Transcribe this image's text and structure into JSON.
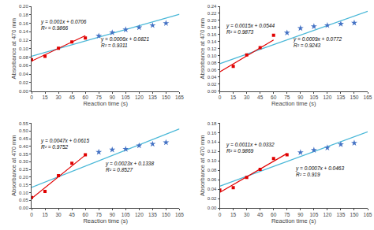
{
  "chart_data": [
    {
      "type": "scatter",
      "xlabel": "Reaction time (s)",
      "ylabel": "Absorbance at 470 mm",
      "grid": false,
      "xlim": [
        0,
        165
      ],
      "xticks": [
        0,
        15,
        30,
        45,
        60,
        75,
        90,
        105,
        120,
        135,
        150,
        165
      ],
      "ylim": [
        0,
        0.2
      ],
      "yticks": [
        {
          "value": 0,
          "label": "0.00"
        },
        {
          "value": 0.02,
          "label": "0.02"
        },
        {
          "value": 0.04,
          "label": "0.04"
        },
        {
          "value": 0.06,
          "label": "0.06"
        },
        {
          "value": 0.08,
          "label": "0.08"
        },
        {
          "value": 0.1,
          "label": "0.10"
        },
        {
          "value": 0.12,
          "label": "0.12"
        },
        {
          "value": 0.14,
          "label": "0.14"
        },
        {
          "value": 0.16,
          "label": "0.16"
        },
        {
          "value": 0.18,
          "label": "0.18"
        },
        {
          "value": 0.2,
          "label": "0.20"
        }
      ],
      "series": [
        {
          "type": "line",
          "color": "#4ab8d8",
          "x": [
            0,
            165
          ],
          "values": [
            0.0821,
            0.1811
          ]
        },
        {
          "type": "line",
          "color": "#e00000",
          "x": [
            0,
            60
          ],
          "values": [
            0.0706,
            0.1306
          ]
        },
        {
          "type": "scatter",
          "color": "#e00000",
          "marker": "square",
          "x": [
            0,
            15,
            30,
            45,
            60
          ],
          "values": [
            0.074,
            0.082,
            0.101,
            0.116,
            0.125
          ]
        },
        {
          "type": "scatter",
          "color": "#4472c4",
          "marker": "star",
          "x": [
            75,
            90,
            105,
            120,
            135,
            150
          ],
          "values": [
            0.13,
            0.138,
            0.145,
            0.15,
            0.155,
            0.16
          ]
        }
      ],
      "annotations": [
        {
          "text": "y = 0.001x + 0.0706\nR² = 0.9866",
          "x": 8,
          "y": 0.138
        },
        {
          "text": "y = 0.0006x + 0.0821\nR² = 0.9311",
          "x": 75,
          "y": 0.098
        }
      ]
    },
    {
      "type": "scatter",
      "xlabel": "Reaction time (s)",
      "ylabel": "Absorbance at 470 mm",
      "grid": false,
      "xlim": [
        0,
        165
      ],
      "xticks": [
        0,
        15,
        30,
        45,
        60,
        75,
        90,
        105,
        120,
        135,
        150,
        165
      ],
      "ylim": [
        0,
        0.24
      ],
      "yticks": [
        {
          "value": 0,
          "label": "0.00"
        },
        {
          "value": 0.02,
          "label": "0.02"
        },
        {
          "value": 0.04,
          "label": "0.04"
        },
        {
          "value": 0.06,
          "label": "0.06"
        },
        {
          "value": 0.08,
          "label": "0.08"
        },
        {
          "value": 0.1,
          "label": "0.10"
        },
        {
          "value": 0.12,
          "label": "0.12"
        },
        {
          "value": 0.14,
          "label": "0.14"
        },
        {
          "value": 0.16,
          "label": "0.16"
        },
        {
          "value": 0.18,
          "label": "0.18"
        },
        {
          "value": 0.2,
          "label": "0.20"
        },
        {
          "value": 0.22,
          "label": "0.22"
        },
        {
          "value": 0.24,
          "label": "0.24"
        }
      ],
      "series": [
        {
          "type": "line",
          "color": "#4ab8d8",
          "x": [
            0,
            165
          ],
          "values": [
            0.0772,
            0.2257
          ]
        },
        {
          "type": "line",
          "color": "#e00000",
          "x": [
            0,
            60
          ],
          "values": [
            0.0544,
            0.1444
          ]
        },
        {
          "type": "scatter",
          "color": "#e00000",
          "marker": "square",
          "x": [
            15,
            30,
            45,
            60
          ],
          "values": [
            0.07,
            0.102,
            0.123,
            0.158
          ]
        },
        {
          "type": "scatter",
          "color": "#4472c4",
          "marker": "star",
          "x": [
            75,
            90,
            105,
            120,
            135,
            150
          ],
          "values": [
            0.165,
            0.178,
            0.183,
            0.186,
            0.19,
            0.193
          ]
        }
      ],
      "annotations": [
        {
          "text": "y = 0.0015x + 0.0544\nR² = 0.9873",
          "x": 5,
          "y": 0.155
        },
        {
          "text": "y = 0.0009x + 0.0772\nR² = 0.9243",
          "x": 80,
          "y": 0.118
        }
      ]
    },
    {
      "type": "scatter",
      "xlabel": "Reaction time (s)",
      "ylabel": "Absorbance at 470 mm",
      "grid": false,
      "xlim": [
        0,
        165
      ],
      "xticks": [
        0,
        15,
        30,
        45,
        60,
        75,
        90,
        105,
        120,
        135,
        150,
        165
      ],
      "ylim": [
        0,
        0.55
      ],
      "yticks": [
        {
          "value": 0,
          "label": "0.00"
        },
        {
          "value": 0.05,
          "label": "0.05"
        },
        {
          "value": 0.1,
          "label": "0.10"
        },
        {
          "value": 0.15,
          "label": "0.15"
        },
        {
          "value": 0.2,
          "label": "0.20"
        },
        {
          "value": 0.25,
          "label": "0.25"
        },
        {
          "value": 0.3,
          "label": "0.30"
        },
        {
          "value": 0.35,
          "label": "0.35"
        },
        {
          "value": 0.4,
          "label": "0.40"
        },
        {
          "value": 0.45,
          "label": "0.45"
        },
        {
          "value": 0.5,
          "label": "0.50"
        },
        {
          "value": 0.55,
          "label": "0.55"
        }
      ],
      "series": [
        {
          "type": "line",
          "color": "#4ab8d8",
          "x": [
            0,
            165
          ],
          "values": [
            0.1338,
            0.5133
          ]
        },
        {
          "type": "line",
          "color": "#e00000",
          "x": [
            0,
            60
          ],
          "values": [
            0.0615,
            0.3435
          ]
        },
        {
          "type": "scatter",
          "color": "#e00000",
          "marker": "square",
          "x": [
            0,
            15,
            30,
            45,
            60
          ],
          "values": [
            0.068,
            0.108,
            0.21,
            0.29,
            0.345
          ]
        },
        {
          "type": "scatter",
          "color": "#4472c4",
          "marker": "star",
          "x": [
            75,
            90,
            105,
            120,
            135,
            150
          ],
          "values": [
            0.363,
            0.378,
            0.382,
            0.405,
            0.415,
            0.425
          ]
        }
      ],
      "annotations": [
        {
          "text": "y = 0.0047x + 0.0615\nR² = 0.9752",
          "x": 8,
          "y": 0.37
        },
        {
          "text": "y = 0.0023x + 0.1338\nR² = 0.8527",
          "x": 80,
          "y": 0.22
        }
      ]
    },
    {
      "type": "scatter",
      "xlabel": "Reaction time (s)",
      "ylabel": "Absorbance at 470 mm",
      "grid": false,
      "xlim": [
        0,
        165
      ],
      "xticks": [
        0,
        15,
        30,
        45,
        60,
        75,
        90,
        105,
        120,
        135,
        150,
        165
      ],
      "ylim": [
        0,
        0.18
      ],
      "yticks": [
        {
          "value": 0,
          "label": "0.00"
        },
        {
          "value": 0.02,
          "label": "0.02"
        },
        {
          "value": 0.04,
          "label": "0.04"
        },
        {
          "value": 0.06,
          "label": "0.06"
        },
        {
          "value": 0.08,
          "label": "0.08"
        },
        {
          "value": 0.1,
          "label": "0.10"
        },
        {
          "value": 0.12,
          "label": "0.12"
        },
        {
          "value": 0.14,
          "label": "0.14"
        },
        {
          "value": 0.16,
          "label": "0.16"
        },
        {
          "value": 0.18,
          "label": "0.18"
        }
      ],
      "series": [
        {
          "type": "line",
          "color": "#4ab8d8",
          "x": [
            0,
            165
          ],
          "values": [
            0.0463,
            0.1618
          ]
        },
        {
          "type": "line",
          "color": "#e00000",
          "x": [
            0,
            75
          ],
          "values": [
            0.0332,
            0.1157
          ]
        },
        {
          "type": "scatter",
          "color": "#e00000",
          "marker": "square",
          "x": [
            0,
            15,
            30,
            45,
            60,
            75
          ],
          "values": [
            0.038,
            0.043,
            0.065,
            0.082,
            0.105,
            0.113
          ]
        },
        {
          "type": "scatter",
          "color": "#4472c4",
          "marker": "star",
          "x": [
            90,
            105,
            120,
            135,
            150
          ],
          "values": [
            0.118,
            0.123,
            0.128,
            0.135,
            0.138
          ]
        }
      ],
      "annotations": [
        {
          "text": "y = 0.0011x + 0.0332\nR² = 0.9869",
          "x": 5,
          "y": 0.112
        },
        {
          "text": "y = 0.0007x + 0.0463\nR² = 0.919",
          "x": 82,
          "y": 0.062
        }
      ]
    }
  ]
}
